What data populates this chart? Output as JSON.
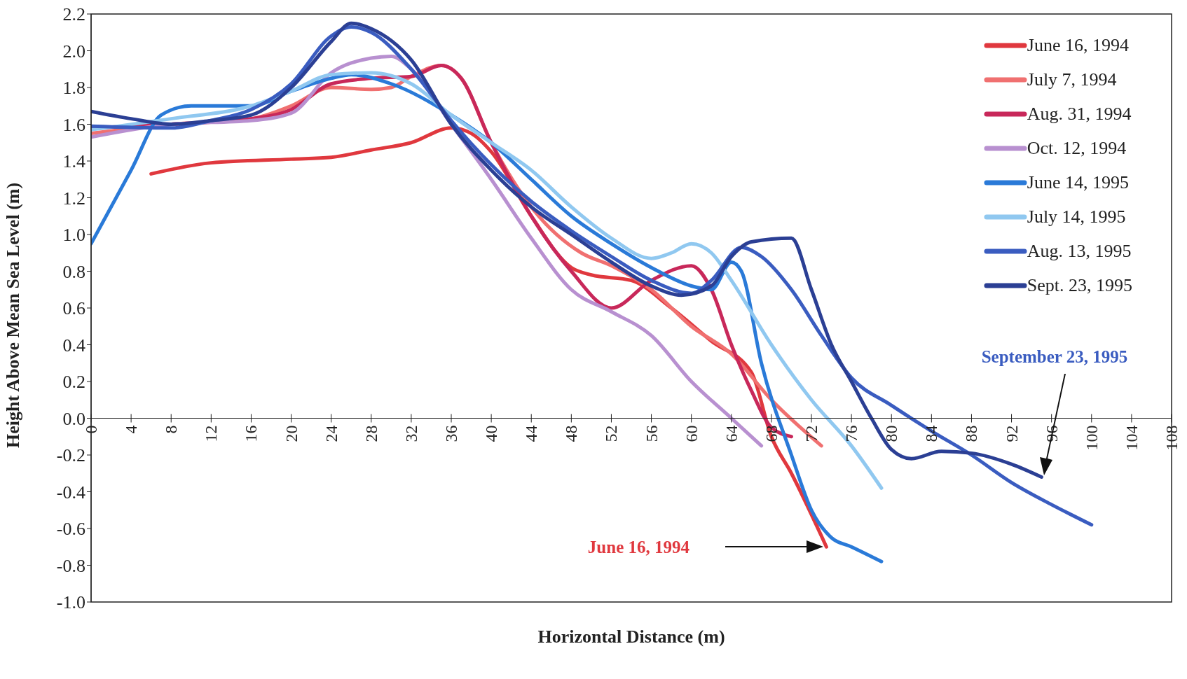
{
  "chart_data": {
    "type": "line",
    "xlabel": "Horizontal Distance (m)",
    "ylabel": "Height Above Mean Sea Level (m)",
    "xlim": [
      0,
      108
    ],
    "xticks": [
      0,
      4,
      8,
      12,
      16,
      20,
      24,
      28,
      32,
      36,
      40,
      44,
      48,
      52,
      56,
      60,
      64,
      68,
      72,
      76,
      80,
      84,
      88,
      92,
      96,
      100,
      104,
      108
    ],
    "ylim": [
      -1.0,
      2.2
    ],
    "yticks": [
      {
        "value": 2.2,
        "label": "2.2"
      },
      {
        "value": 2.0,
        "label": "2.0"
      },
      {
        "value": 1.8,
        "label": "1.8"
      },
      {
        "value": 1.6,
        "label": "1.6"
      },
      {
        "value": 1.4,
        "label": "1.4"
      },
      {
        "value": 1.2,
        "label": "1.2"
      },
      {
        "value": 1.0,
        "label": "1.0"
      },
      {
        "value": 0.8,
        "label": "0.8"
      },
      {
        "value": 0.6,
        "label": "0.6"
      },
      {
        "value": 0.4,
        "label": "0.4"
      },
      {
        "value": 0.2,
        "label": "0.2"
      },
      {
        "value": 0.0,
        "label": "0.0"
      },
      {
        "value": -0.2,
        "label": "-0.2"
      },
      {
        "value": -0.4,
        "label": "-0.4"
      },
      {
        "value": -0.6,
        "label": "-0.6"
      },
      {
        "value": -0.8,
        "label": "-0.8"
      },
      {
        "value": -1.0,
        "label": "-1.0"
      }
    ],
    "grid": false,
    "legend": "top right",
    "marker": "none",
    "line_style": "solid",
    "series": [
      {
        "name": "June 16, 1994",
        "color": "#e0383e",
        "x": [
          6,
          12,
          20,
          24,
          28,
          32,
          36,
          38,
          40,
          44,
          48,
          50,
          54,
          58,
          62,
          66,
          68,
          70,
          73.5
        ],
        "values": [
          1.33,
          1.39,
          1.41,
          1.42,
          1.46,
          1.5,
          1.58,
          1.55,
          1.45,
          1.1,
          0.82,
          0.78,
          0.75,
          0.6,
          0.42,
          0.25,
          -0.1,
          -0.3,
          -0.7
        ]
      },
      {
        "name": "July 7, 1994",
        "color": "#f07070",
        "x": [
          0,
          8,
          16,
          20,
          24,
          28,
          30,
          32,
          35,
          37,
          40,
          44,
          49,
          52,
          56,
          60,
          64,
          68,
          73
        ],
        "values": [
          1.55,
          1.6,
          1.63,
          1.7,
          1.8,
          1.79,
          1.8,
          1.86,
          1.92,
          1.85,
          1.5,
          1.15,
          0.9,
          0.83,
          0.7,
          0.5,
          0.35,
          0.1,
          -0.15
        ]
      },
      {
        "name": "Aug. 31, 1994",
        "color": "#c8285a",
        "x": [
          0,
          8,
          16,
          20,
          24,
          28,
          32,
          35,
          37,
          40,
          44,
          48,
          52,
          56,
          60,
          62,
          64,
          66,
          68,
          70
        ],
        "values": [
          1.58,
          1.6,
          1.63,
          1.68,
          1.82,
          1.85,
          1.86,
          1.92,
          1.85,
          1.5,
          1.1,
          0.8,
          0.6,
          0.75,
          0.83,
          0.7,
          0.4,
          0.15,
          -0.05,
          -0.1
        ]
      },
      {
        "name": "Oct. 12, 1994",
        "color": "#b890d0",
        "x": [
          0,
          8,
          16,
          20,
          24,
          28,
          30,
          32,
          36,
          40,
          44,
          48,
          52,
          56,
          60,
          64,
          67
        ],
        "values": [
          1.53,
          1.6,
          1.62,
          1.66,
          1.88,
          1.96,
          1.97,
          1.9,
          1.6,
          1.3,
          0.98,
          0.7,
          0.58,
          0.45,
          0.2,
          0.0,
          -0.15
        ]
      },
      {
        "name": "June 14, 1995",
        "color": "#2a7ad8",
        "x": [
          0,
          4,
          7,
          10,
          16,
          20,
          24,
          26,
          30,
          36,
          40,
          44,
          48,
          52,
          56,
          60,
          62,
          64,
          65,
          67,
          70,
          72,
          74,
          76,
          79
        ],
        "values": [
          0.95,
          1.35,
          1.65,
          1.7,
          1.7,
          1.78,
          1.85,
          1.87,
          1.82,
          1.65,
          1.5,
          1.3,
          1.1,
          0.95,
          0.82,
          0.72,
          0.7,
          0.85,
          0.8,
          0.3,
          -0.2,
          -0.5,
          -0.65,
          -0.7,
          -0.78
        ]
      },
      {
        "name": "July 14, 1995",
        "color": "#90c8f0",
        "x": [
          0,
          8,
          16,
          20,
          24,
          28,
          32,
          36,
          40,
          44,
          48,
          52,
          56,
          58,
          60,
          62,
          64,
          68,
          72,
          76,
          79
        ],
        "values": [
          1.57,
          1.63,
          1.7,
          1.78,
          1.87,
          1.88,
          1.82,
          1.65,
          1.5,
          1.35,
          1.15,
          0.98,
          0.87,
          0.9,
          0.95,
          0.9,
          0.75,
          0.4,
          0.1,
          -0.15,
          -0.38
        ]
      },
      {
        "name": "Aug. 13, 1995",
        "color": "#3a5cc0",
        "x": [
          0,
          8,
          12,
          16,
          20,
          24,
          26,
          28,
          32,
          36,
          40,
          44,
          48,
          52,
          56,
          60,
          62,
          65,
          67,
          70,
          73,
          76,
          80,
          84,
          88,
          92,
          96,
          100
        ],
        "values": [
          1.59,
          1.58,
          1.62,
          1.68,
          1.82,
          2.08,
          2.13,
          2.1,
          1.9,
          1.62,
          1.38,
          1.18,
          1.02,
          0.88,
          0.75,
          0.68,
          0.75,
          0.93,
          0.88,
          0.7,
          0.45,
          0.22,
          0.07,
          -0.07,
          -0.2,
          -0.35,
          -0.47,
          -0.58
        ]
      },
      {
        "name": "Sept. 23, 1995",
        "color": "#2b3f94",
        "x": [
          0,
          4,
          8,
          12,
          16,
          20,
          24,
          26,
          28,
          32,
          36,
          40,
          44,
          48,
          52,
          56,
          59,
          62,
          64,
          66,
          70,
          72,
          74,
          76,
          78,
          80,
          82,
          85,
          88,
          92,
          95
        ],
        "values": [
          1.67,
          1.63,
          1.6,
          1.62,
          1.65,
          1.8,
          2.05,
          2.15,
          2.12,
          1.95,
          1.6,
          1.35,
          1.15,
          1.0,
          0.85,
          0.72,
          0.67,
          0.72,
          0.88,
          0.96,
          0.98,
          0.7,
          0.4,
          0.2,
          0.0,
          -0.17,
          -0.22,
          -0.18,
          -0.19,
          -0.25,
          -0.32
        ]
      }
    ],
    "annotations": [
      "June 16, 1994",
      "September 23, 1995"
    ]
  }
}
